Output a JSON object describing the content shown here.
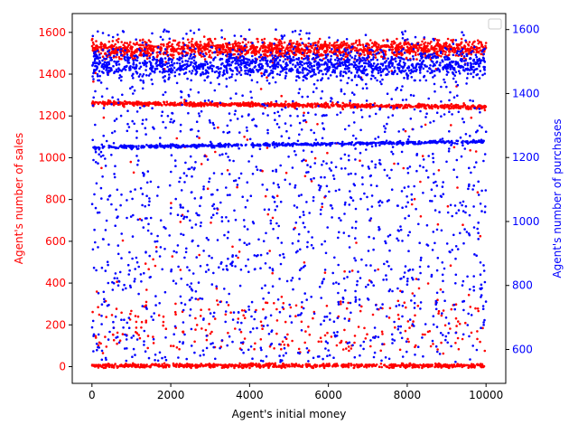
{
  "chart_data": {
    "type": "scatter",
    "title": "",
    "xlabel": "Agent's initial money",
    "ylabel_left": "Agent's number of sales",
    "ylabel_right": "Agent's number of purchases",
    "xlim": [
      -500,
      10500
    ],
    "ylim_left": [
      -80,
      1690
    ],
    "ylim_right": [
      494,
      1650
    ],
    "x_ticks": [
      0,
      2000,
      4000,
      6000,
      8000,
      10000
    ],
    "y_left_ticks": [
      0,
      200,
      400,
      600,
      800,
      1000,
      1200,
      1400,
      1600
    ],
    "y_right_ticks": [
      600,
      800,
      1000,
      1200,
      1400,
      1600
    ],
    "grid": false,
    "legend": "top-right (empty box)",
    "colors": {
      "sales": "#ff0000",
      "purchases": "#0000ff",
      "axis": "#000000"
    },
    "series": [
      {
        "axis": "left",
        "color": "#ff0000",
        "point_count": 10000,
        "x_range": [
          0,
          10000
        ],
        "bands": [
          {
            "center": 1520,
            "spread": 35,
            "share": 0.42
          },
          {
            "line_start": 1262,
            "line_end": 1242,
            "spread": 12,
            "share": 0.25
          },
          {
            "center": 5,
            "spread": 8,
            "share": 0.22
          },
          {
            "range": [
              60,
              1580
            ],
            "density": "sparse, heavier toward 100-300",
            "share": 0.11
          }
        ]
      },
      {
        "axis": "right",
        "color": "#0000ff",
        "point_count": 10000,
        "x_range": [
          0,
          10000
        ],
        "bands": [
          {
            "center": 1490,
            "spread": 35,
            "share": 0.36
          },
          {
            "line_start": 1232,
            "line_end": 1250,
            "spread": 6,
            "share": 0.17
          },
          {
            "range": [
              560,
              1600
            ],
            "density": "scattered",
            "share": 0.47
          }
        ]
      }
    ]
  }
}
